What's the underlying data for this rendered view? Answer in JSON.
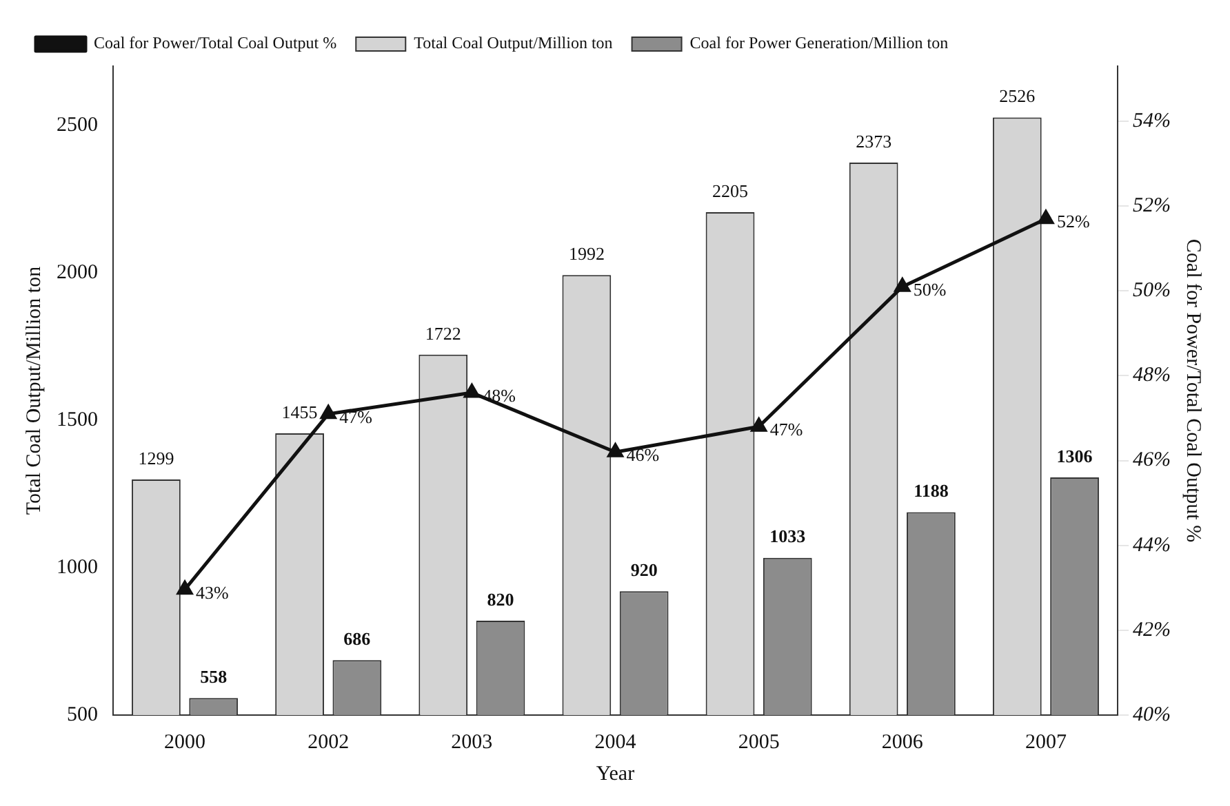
{
  "chart_data": {
    "type": "bar",
    "xlabel": "Year",
    "ylabel": "Total Coal Output/Million ton",
    "y2label": "Coal for Power/Total Coal Output %",
    "categories": [
      "2000",
      "2002",
      "2003",
      "2004",
      "2005",
      "2006",
      "2007"
    ],
    "series": [
      {
        "name": "Total Coal Output/Million ton",
        "color": "#d4d4d4",
        "values": [
          1299,
          1455,
          1722,
          1992,
          2205,
          2373,
          2526
        ]
      },
      {
        "name": "Coal for Power Generation/Million ton",
        "color": "#8c8c8c",
        "values": [
          558,
          686,
          820,
          920,
          1033,
          1188,
          1306
        ]
      },
      {
        "name": "Coal for Power/Total Coal Output %",
        "type": "line",
        "axis": "y2",
        "color": "#111111",
        "marker": "triangle",
        "values": [
          42.96,
          47.1,
          47.6,
          46.2,
          46.8,
          50.1,
          51.7
        ],
        "value_labels": [
          "43%",
          "47%",
          "48%",
          "46%",
          "47%",
          "50%",
          "52%"
        ]
      }
    ],
    "data_labels": true,
    "ylim": [
      500,
      2700
    ],
    "yticks": [
      500,
      1000,
      1500,
      2000,
      2500
    ],
    "y2lim": [
      40,
      55.3
    ],
    "y2ticks": [
      {
        "value": 40,
        "label": "40%"
      },
      {
        "value": 42,
        "label": "42%"
      },
      {
        "value": 44,
        "label": "44%"
      },
      {
        "value": 46,
        "label": "46%"
      },
      {
        "value": 48,
        "label": "48%"
      },
      {
        "value": 50,
        "label": "50%"
      },
      {
        "value": 52,
        "label": "52%"
      },
      {
        "value": 54,
        "label": "54%"
      }
    ],
    "grid": false,
    "legend": "top"
  }
}
